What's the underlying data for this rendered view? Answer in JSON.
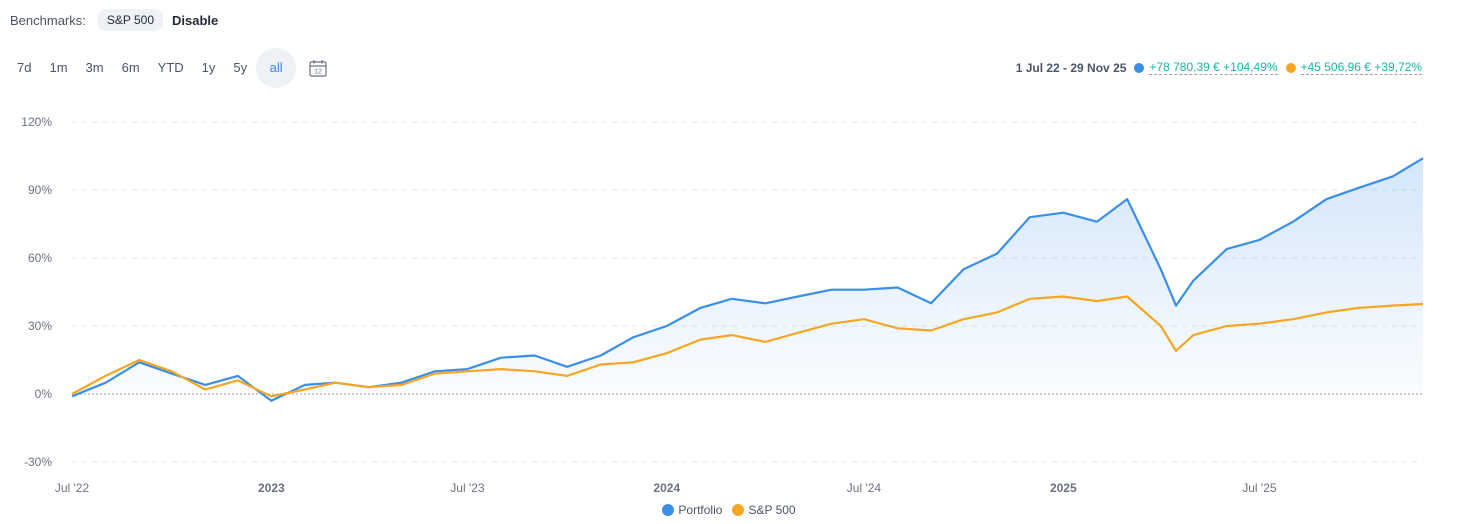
{
  "benchmarks": {
    "label": "Benchmarks:",
    "selected": "S&P 500",
    "disable_label": "Disable"
  },
  "ranges": [
    "7d",
    "1m",
    "3m",
    "6m",
    "YTD",
    "1y",
    "5y",
    "all"
  ],
  "active_range": "all",
  "calendar": {
    "icon": "calendar-icon",
    "day": "12"
  },
  "summary": {
    "period": "1 Jul 22 - 29 Nov 25",
    "portfolio_delta": "+78 780,39 € +104,49%",
    "benchmark_delta": "+45 506,96 € +39,72%"
  },
  "colors": {
    "portfolio": "#3b8fe8",
    "benchmark": "#f5a623",
    "accent": "#14b8a6",
    "grid": "#e5e7eb"
  },
  "legend": {
    "portfolio": "Portfolio",
    "benchmark": "S&P 500"
  },
  "chart_data": {
    "type": "line",
    "x_tick_labels": [
      "Jul '22",
      "2023",
      "Jul '23",
      "2024",
      "Jul '24",
      "2025",
      "Jul '25"
    ],
    "y_tick_labels": [
      "120%",
      "90%",
      "60%",
      "30%",
      "0%",
      "-30%"
    ],
    "ylim": [
      -30,
      120
    ],
    "grid": true,
    "legend_position": "bottom",
    "x": [
      "2022-07-01",
      "2022-08-01",
      "2022-09-01",
      "2022-10-01",
      "2022-11-01",
      "2022-12-01",
      "2023-01-01",
      "2023-02-01",
      "2023-03-01",
      "2023-04-01",
      "2023-05-01",
      "2023-06-01",
      "2023-07-01",
      "2023-08-01",
      "2023-09-01",
      "2023-10-01",
      "2023-11-01",
      "2023-12-01",
      "2024-01-01",
      "2024-02-01",
      "2024-03-01",
      "2024-04-01",
      "2024-05-01",
      "2024-06-01",
      "2024-07-01",
      "2024-08-01",
      "2024-09-01",
      "2024-10-01",
      "2024-11-01",
      "2024-12-01",
      "2025-01-01",
      "2025-02-01",
      "2025-03-01",
      "2025-04-01",
      "2025-04-15",
      "2025-05-01",
      "2025-06-01",
      "2025-07-01",
      "2025-08-01",
      "2025-09-01",
      "2025-10-01",
      "2025-11-01",
      "2025-11-29"
    ],
    "series": [
      {
        "name": "Portfolio",
        "values": [
          -1,
          5,
          14,
          9,
          4,
          8,
          -3,
          4,
          5,
          3,
          5,
          10,
          11,
          16,
          17,
          12,
          17,
          25,
          30,
          38,
          42,
          40,
          43,
          46,
          46,
          47,
          40,
          55,
          62,
          78,
          80,
          76,
          86,
          55,
          39,
          50,
          64,
          68,
          76,
          86,
          91,
          96,
          104
        ]
      },
      {
        "name": "S&P 500",
        "values": [
          0,
          8,
          15,
          10,
          2,
          6,
          -1,
          2,
          5,
          3,
          4,
          9,
          10,
          11,
          10,
          8,
          13,
          14,
          18,
          24,
          26,
          23,
          27,
          31,
          33,
          29,
          28,
          33,
          36,
          42,
          43,
          41,
          43,
          30,
          19,
          26,
          30,
          31,
          33,
          36,
          38,
          39,
          39.72
        ]
      }
    ]
  }
}
